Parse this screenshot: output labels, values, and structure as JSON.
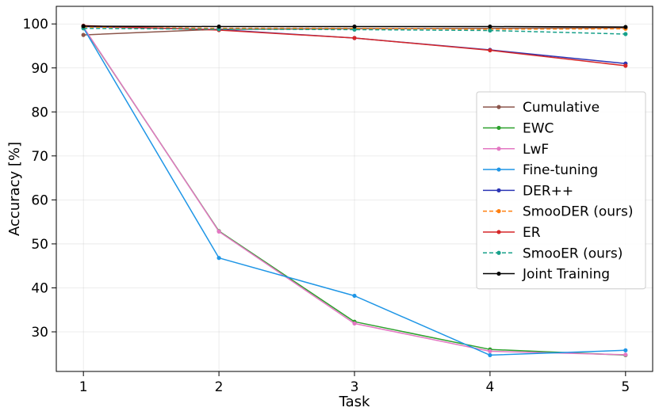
{
  "chart_data": {
    "type": "line",
    "xlabel": "Task",
    "ylabel": "Accuracy [%]",
    "x": [
      1,
      2,
      3,
      4,
      5
    ],
    "xlim": [
      0.8,
      5.2
    ],
    "ylim": [
      21,
      104
    ],
    "yticks": [
      30,
      40,
      50,
      60,
      70,
      80,
      90,
      100
    ],
    "grid": true,
    "legend_position": "right",
    "series": [
      {
        "name": "Cumulative",
        "color": "#8c564b",
        "dash": false,
        "values": [
          97.5,
          98.8,
          98.9,
          99.0,
          99.1
        ]
      },
      {
        "name": "EWC",
        "color": "#2ca02c",
        "dash": false,
        "values": [
          99.2,
          52.9,
          32.3,
          26.0,
          24.7
        ]
      },
      {
        "name": "LwF",
        "color": "#e377c2",
        "dash": false,
        "values": [
          99.3,
          52.8,
          31.9,
          25.6,
          24.8
        ]
      },
      {
        "name": "Fine-tuning",
        "color": "#1f96e6",
        "dash": false,
        "values": [
          99.1,
          46.8,
          38.2,
          24.7,
          25.8
        ]
      },
      {
        "name": "DER++",
        "color": "#2b35b5",
        "dash": false,
        "values": [
          99.4,
          98.7,
          96.8,
          94.1,
          91.0
        ]
      },
      {
        "name": "SmooDER (ours)",
        "color": "#ff7f0e",
        "dash": true,
        "values": [
          99.3,
          99.0,
          99.0,
          98.8,
          98.9
        ]
      },
      {
        "name": "ER",
        "color": "#d62728",
        "dash": false,
        "values": [
          99.6,
          98.6,
          96.8,
          94.0,
          90.5
        ]
      },
      {
        "name": "SmooER (ours)",
        "color": "#17a08a",
        "dash": true,
        "values": [
          99.0,
          98.8,
          98.7,
          98.5,
          97.7
        ]
      },
      {
        "name": "Joint Training",
        "color": "#000000",
        "dash": false,
        "values": [
          99.5,
          99.4,
          99.4,
          99.4,
          99.3
        ]
      }
    ]
  }
}
